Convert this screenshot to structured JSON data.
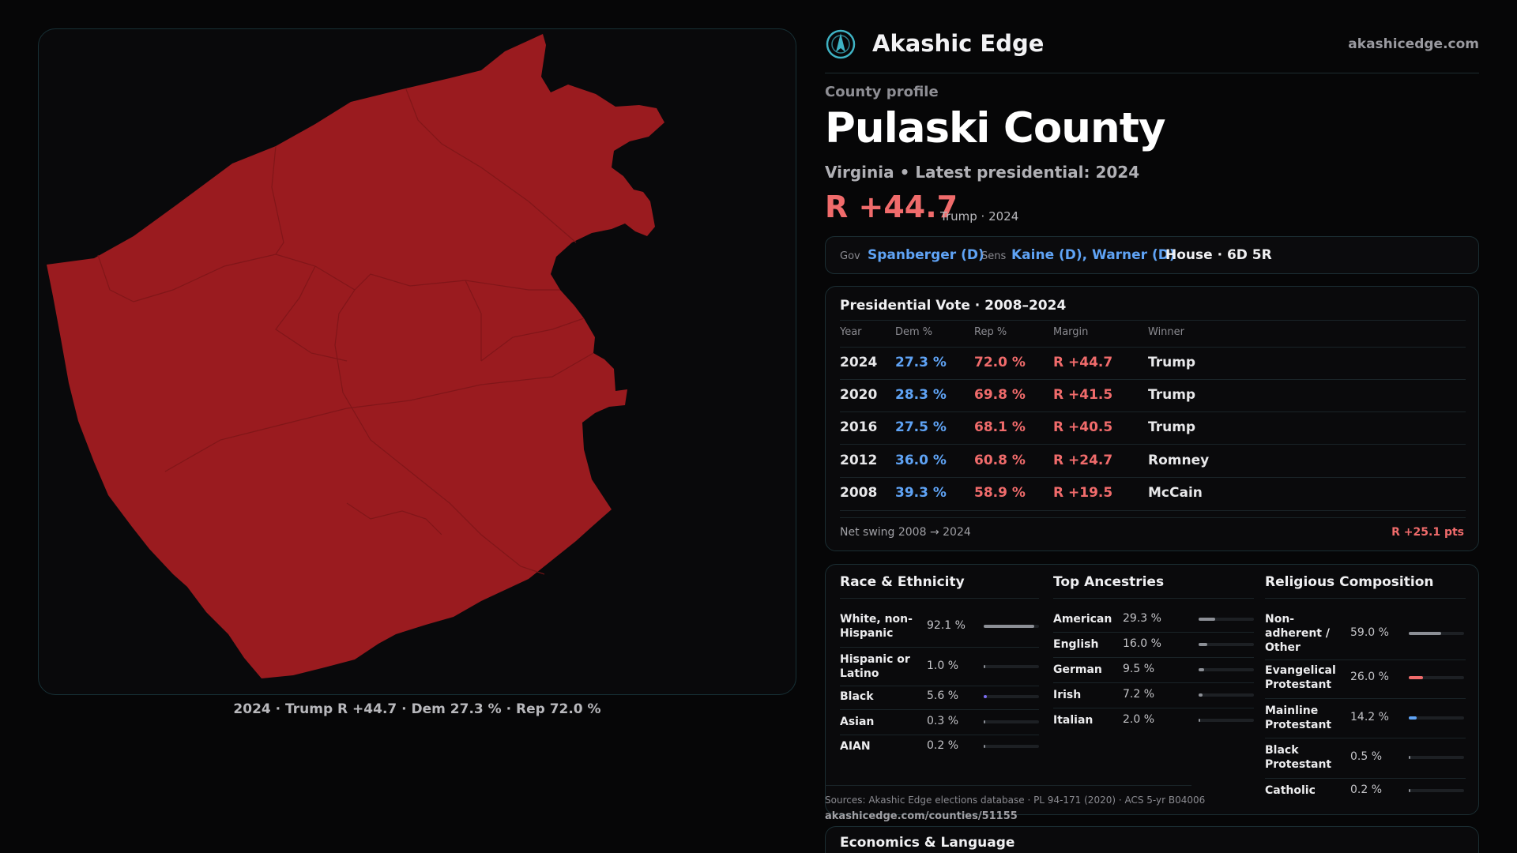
{
  "brand": {
    "name": "Akashic Edge",
    "url": "akashicedge.com",
    "logo_icon": "compass-globe-icon"
  },
  "map": {
    "fill_color": "#9a1b1f",
    "caption": "2024 · Trump R +44.7 · Dem 27.3 % · Rep 72.0 %"
  },
  "profile": {
    "eyebrow": "County profile",
    "county": "Pulaski County",
    "subtitle": "Virginia • Latest presidential: 2024",
    "margin": "R +44.7",
    "margin_note": "Trump · 2024"
  },
  "officials": {
    "gov_label": "Gov",
    "gov": "Spanberger (D)",
    "sens_label": "Sens",
    "sens": "Kaine (D), Warner (D)",
    "house": "House · 6D 5R"
  },
  "presidential": {
    "title": "Presidential Vote · 2008–2024",
    "headers": [
      "Year",
      "Dem %",
      "Rep %",
      "Margin",
      "Winner"
    ],
    "rows": [
      {
        "year": "2024",
        "dem": "27.3 %",
        "rep": "72.0 %",
        "margin": "R +44.7",
        "winner": "Trump"
      },
      {
        "year": "2020",
        "dem": "28.3 %",
        "rep": "69.8 %",
        "margin": "R +41.5",
        "winner": "Trump"
      },
      {
        "year": "2016",
        "dem": "27.5 %",
        "rep": "68.1 %",
        "margin": "R +40.5",
        "winner": "Trump"
      },
      {
        "year": "2012",
        "dem": "36.0 %",
        "rep": "60.8 %",
        "margin": "R +24.7",
        "winner": "Romney"
      },
      {
        "year": "2008",
        "dem": "39.3 %",
        "rep": "58.9 %",
        "margin": "R +19.5",
        "winner": "McCain"
      }
    ],
    "swing_label": "Net swing 2008 → 2024",
    "swing_value": "R +25.1 pts"
  },
  "demographics": {
    "race": {
      "title": "Race & Ethnicity",
      "items": [
        {
          "name": "White, non-Hispanic",
          "pct": "92.1 %",
          "value": 92.1,
          "color": "#8c8f96"
        },
        {
          "name": "Hispanic or Latino",
          "pct": "1.0 %",
          "value": 1.0,
          "color": "#8c8f96"
        },
        {
          "name": "Black",
          "pct": "5.6 %",
          "value": 5.6,
          "color": "#7a6cf0"
        },
        {
          "name": "Asian",
          "pct": "0.3 %",
          "value": 0.3,
          "color": "#8c8f96"
        },
        {
          "name": "AIAN",
          "pct": "0.2 %",
          "value": 0.2,
          "color": "#8c8f96"
        }
      ]
    },
    "ancestry": {
      "title": "Top Ancestries",
      "items": [
        {
          "name": "American",
          "pct": "29.3 %",
          "value": 29.3,
          "color": "#8c8f96"
        },
        {
          "name": "English",
          "pct": "16.0 %",
          "value": 16.0,
          "color": "#8c8f96"
        },
        {
          "name": "German",
          "pct": "9.5 %",
          "value": 9.5,
          "color": "#8c8f96"
        },
        {
          "name": "Irish",
          "pct": "7.2 %",
          "value": 7.2,
          "color": "#8c8f96"
        },
        {
          "name": "Italian",
          "pct": "2.0 %",
          "value": 2.0,
          "color": "#8c8f96"
        }
      ]
    },
    "religion": {
      "title": "Religious Composition",
      "items": [
        {
          "name": "Non-adherent / Other",
          "pct": "59.0 %",
          "value": 59.0,
          "color": "#8c8f96"
        },
        {
          "name": "Evangelical Protestant",
          "pct": "26.0 %",
          "value": 26.0,
          "color": "#f06b6b"
        },
        {
          "name": "Mainline Protestant",
          "pct": "14.2 %",
          "value": 14.2,
          "color": "#5fa3f5"
        },
        {
          "name": "Black Protestant",
          "pct": "0.5 %",
          "value": 0.5,
          "color": "#8c8f96"
        },
        {
          "name": "Catholic",
          "pct": "0.2 %",
          "value": 0.2,
          "color": "#8c8f96"
        }
      ]
    }
  },
  "sources": {
    "text": "Sources: Akashic Edge elections database · PL 94-171 (2020) · ACS 5-yr B04006",
    "url": "akashicedge.com/counties/51155"
  },
  "econ": {
    "title": "Economics & Language"
  }
}
